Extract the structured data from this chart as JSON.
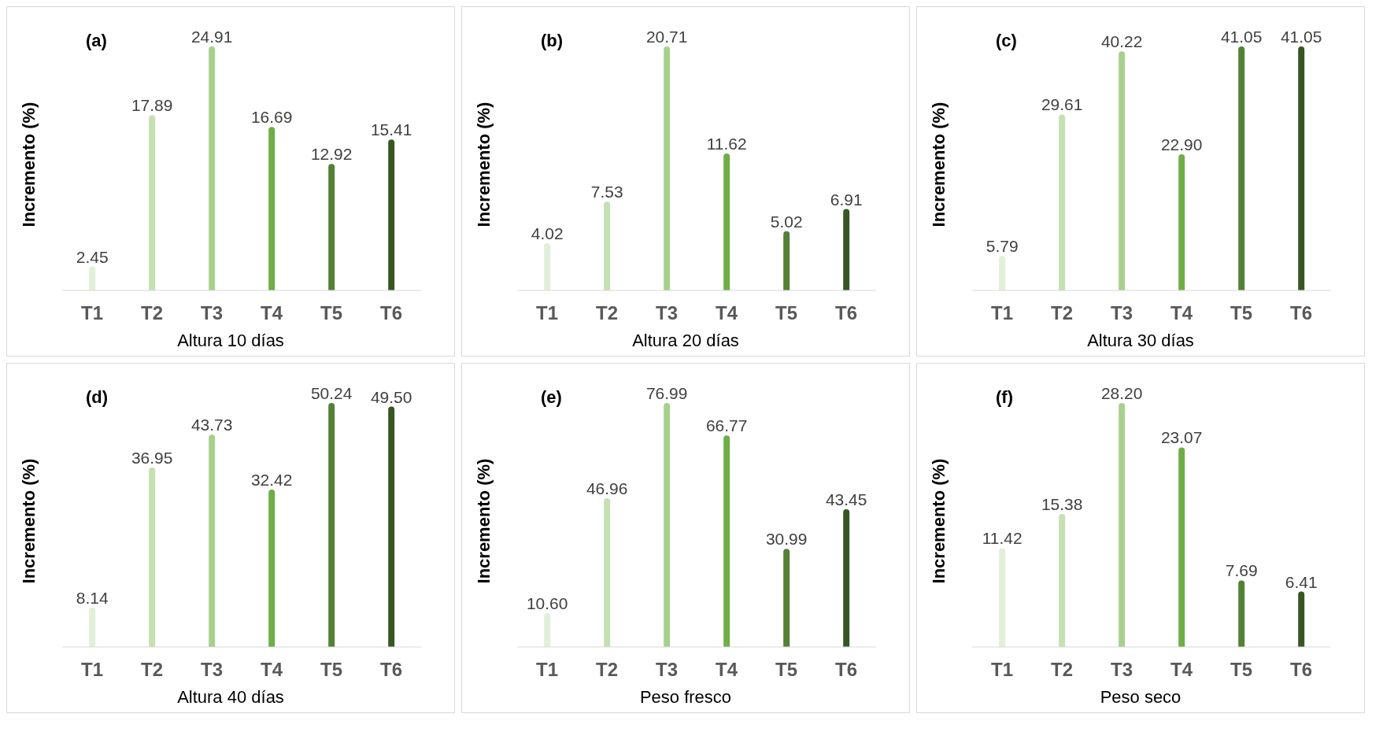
{
  "chart_data": [
    {
      "type": "bar",
      "title": "(a)",
      "xlabel": "Altura 10 días",
      "ylabel": "Incremento (%)",
      "categories": [
        "T1",
        "T2",
        "T3",
        "T4",
        "T5",
        "T6"
      ],
      "values": [
        2.45,
        17.89,
        24.91,
        16.69,
        12.92,
        15.41
      ],
      "colors": [
        "#e2efd9",
        "#c5e0b3",
        "#a8d08d",
        "#70ad47",
        "#538135",
        "#375623"
      ],
      "data_labels": true,
      "grid": false,
      "legend": false
    },
    {
      "type": "bar",
      "title": "(b)",
      "xlabel": "Altura 20 días",
      "ylabel": "Incremento (%)",
      "categories": [
        "T1",
        "T2",
        "T3",
        "T4",
        "T5",
        "T6"
      ],
      "values": [
        4.02,
        7.53,
        20.71,
        11.62,
        5.02,
        6.91
      ],
      "colors": [
        "#e2efd9",
        "#c5e0b3",
        "#a8d08d",
        "#70ad47",
        "#538135",
        "#375623"
      ],
      "data_labels": true,
      "grid": false,
      "legend": false
    },
    {
      "type": "bar",
      "title": "(c)",
      "xlabel": "Altura 30 días",
      "ylabel": "Incremento (%)",
      "categories": [
        "T1",
        "T2",
        "T3",
        "T4",
        "T5",
        "T6"
      ],
      "values": [
        5.79,
        29.61,
        40.22,
        22.9,
        41.05,
        41.05
      ],
      "value_labels": [
        "5.79",
        "29.61",
        "40.22",
        "22.90",
        "41.05",
        "41.05"
      ],
      "colors": [
        "#e2efd9",
        "#c5e0b3",
        "#a8d08d",
        "#70ad47",
        "#538135",
        "#375623"
      ],
      "grid": false,
      "legend": false
    },
    {
      "type": "bar",
      "title": "(d)",
      "xlabel": "Altura 40 días",
      "ylabel": "Incremento (%)",
      "categories": [
        "T1",
        "T2",
        "T3",
        "T4",
        "T5",
        "T6"
      ],
      "values": [
        8.14,
        36.95,
        43.73,
        32.42,
        50.24,
        49.5
      ],
      "value_labels": [
        "8.14",
        "36.95",
        "43.73",
        "32.42",
        "50.24",
        "49.50"
      ],
      "colors": [
        "#e2efd9",
        "#c5e0b3",
        "#a8d08d",
        "#70ad47",
        "#538135",
        "#375623"
      ],
      "grid": false,
      "legend": false
    },
    {
      "type": "bar",
      "title": "(e)",
      "xlabel": "Peso  fresco",
      "ylabel": "Incremento (%)",
      "categories": [
        "T1",
        "T2",
        "T3",
        "T4",
        "T5",
        "T6"
      ],
      "values": [
        10.6,
        46.96,
        76.99,
        66.77,
        30.99,
        43.45
      ],
      "value_labels": [
        "10.60",
        "46.96",
        "76.99",
        "66.77",
        "30.99",
        "43.45"
      ],
      "colors": [
        "#e2efd9",
        "#c5e0b3",
        "#a8d08d",
        "#70ad47",
        "#538135",
        "#375623"
      ],
      "grid": false,
      "legend": false
    },
    {
      "type": "bar",
      "title": "(f)",
      "xlabel": "Peso seco",
      "ylabel": "Incremento (%)",
      "categories": [
        "T1",
        "T2",
        "T3",
        "T4",
        "T5",
        "T6"
      ],
      "values": [
        11.42,
        15.38,
        28.2,
        23.07,
        7.69,
        6.41
      ],
      "value_labels": [
        "11.42",
        "15.38",
        "28.20",
        "23.07",
        "7.69",
        "6.41"
      ],
      "colors": [
        "#e2efd9",
        "#c5e0b3",
        "#a8d08d",
        "#70ad47",
        "#538135",
        "#375623"
      ],
      "grid": false,
      "legend": false
    }
  ]
}
